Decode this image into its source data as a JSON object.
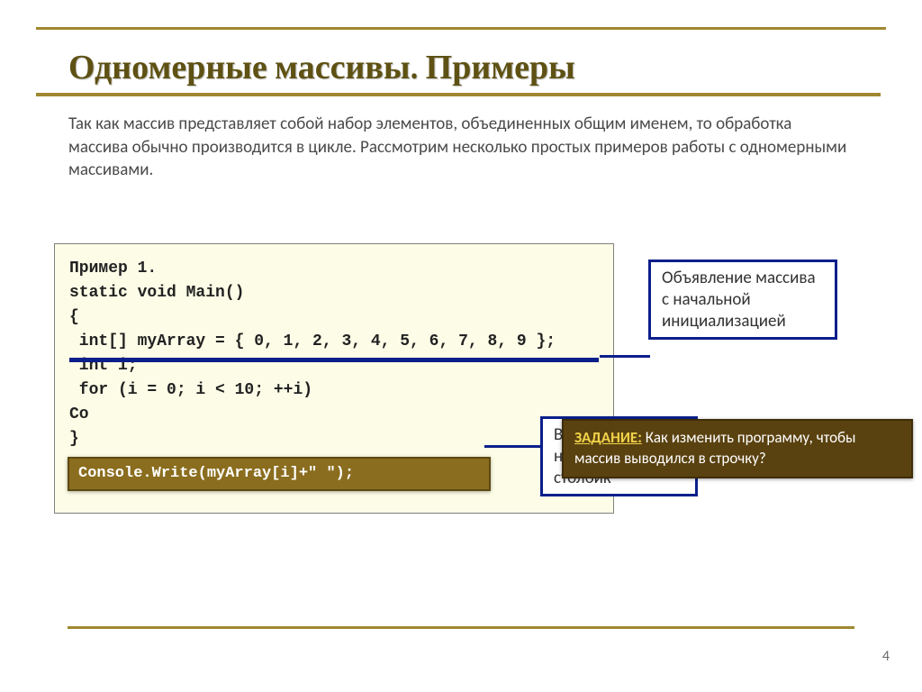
{
  "title": "Одномерные массивы. Примеры",
  "intro": "Так как массив представляет собой набор элементов, объединенных общим именем, то обработка массива обычно производится в цикле. Рассмотрим несколько простых примеров работы с одномерными массивами.",
  "code": {
    "l1": "Пример 1.",
    "l2": "static void Main()",
    "l3": "{",
    "l4": " int[] myArray = { 0, 1, 2, 3, 4, 5, 6, 7, 8, 9 };",
    "l5": " int i;",
    "l6": " for (i = 0; i < 10; ++i)",
    "l7": "Co",
    "l8": "}"
  },
  "callout1": "Объявление массива с начальной инициализацией",
  "callout2_line1": "В",
  "callout2_line2": "н",
  "callout2_line3": "столбик",
  "hint_overlay": "Console.Write(myArray[i]+\" \");",
  "task_label": "ЗАДАНИЕ:",
  "task_text": " Как изменить программу, чтобы массив выводился в строчку?",
  "page_number": "4",
  "colors": {
    "accent_olive": "#a08830",
    "title_color": "#5e5113",
    "code_bg": "#fdfde7",
    "callout_border": "#0b1f8b",
    "hint_bg": "#8a6d1e",
    "task_bg": "#5a4210",
    "task_label_color": "#f2d34a"
  }
}
